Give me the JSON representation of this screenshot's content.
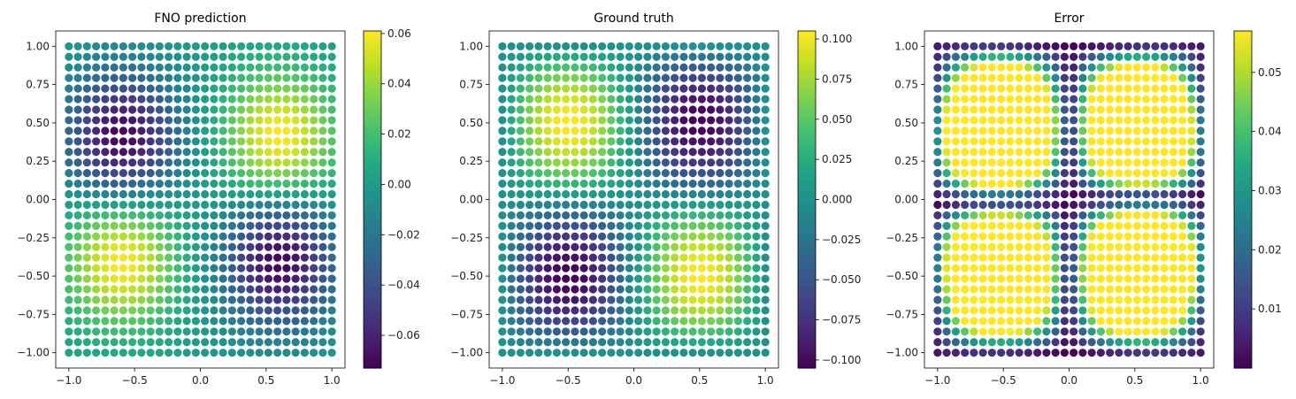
{
  "chart_data": [
    {
      "type": "scatter",
      "title": "FNO prediction",
      "xlabel": "",
      "ylabel": "",
      "xlim": [
        -1.1,
        1.1
      ],
      "ylim": [
        -1.1,
        1.1
      ],
      "grid_points_per_axis": 30,
      "x_range": [
        -1.0,
        1.0
      ],
      "y_range": [
        -1.0,
        1.0
      ],
      "field": "-sin(pi*x)*sin(pi*y)",
      "peak_positions": [
        [
          0.6,
          0.4
        ],
        [
          -0.6,
          -0.4
        ]
      ],
      "peak_value": 0.062,
      "trough_positions": [
        [
          -0.6,
          0.4
        ],
        [
          0.6,
          -0.4
        ]
      ],
      "trough_value": -0.073,
      "colormap": "viridis",
      "colorbar_range": [
        -0.073,
        0.061
      ],
      "xticks": [
        "−1.0",
        "−0.5",
        "0.0",
        "0.5",
        "1.0"
      ],
      "xtick_values": [
        -1.0,
        -0.5,
        0.0,
        0.5,
        1.0
      ],
      "yticks": [
        "−1.00",
        "−0.75",
        "−0.50",
        "−0.25",
        "0.00",
        "0.25",
        "0.50",
        "0.75",
        "1.00"
      ],
      "ytick_values": [
        -1.0,
        -0.75,
        -0.5,
        -0.25,
        0.0,
        0.25,
        0.5,
        0.75,
        1.0
      ],
      "colorbar_ticks": [
        "−0.06",
        "−0.04",
        "−0.02",
        "0.00",
        "0.02",
        "0.04",
        "0.06"
      ],
      "colorbar_tick_values": [
        -0.06,
        -0.04,
        -0.02,
        0.0,
        0.02,
        0.04,
        0.06
      ]
    },
    {
      "type": "scatter",
      "title": "Ground truth",
      "xlabel": "",
      "ylabel": "",
      "xlim": [
        -1.1,
        1.1
      ],
      "ylim": [
        -1.1,
        1.1
      ],
      "grid_points_per_axis": 30,
      "x_range": [
        -1.0,
        1.0
      ],
      "y_range": [
        -1.0,
        1.0
      ],
      "field": "-0.105*sin(pi*x)*sin(pi*y)",
      "peak_positions": [
        [
          0.5,
          0.5
        ],
        [
          -0.5,
          -0.5
        ]
      ],
      "peak_value": 0.105,
      "trough_positions": [
        [
          -0.5,
          0.5
        ],
        [
          0.5,
          -0.5
        ]
      ],
      "trough_value": -0.105,
      "colormap": "viridis",
      "colorbar_range": [
        -0.105,
        0.105
      ],
      "xticks": [
        "−1.0",
        "−0.5",
        "0.0",
        "0.5",
        "1.0"
      ],
      "xtick_values": [
        -1.0,
        -0.5,
        0.0,
        0.5,
        1.0
      ],
      "yticks": [
        "−1.00",
        "−0.75",
        "−0.50",
        "−0.25",
        "0.00",
        "0.25",
        "0.50",
        "0.75",
        "1.00"
      ],
      "ytick_values": [
        -1.0,
        -0.75,
        -0.5,
        -0.25,
        0.0,
        0.25,
        0.5,
        0.75,
        1.0
      ],
      "colorbar_ticks": [
        "−0.100",
        "−0.075",
        "−0.050",
        "−0.025",
        "0.000",
        "0.025",
        "0.050",
        "0.075",
        "0.100"
      ],
      "colorbar_tick_values": [
        -0.1,
        -0.075,
        -0.05,
        -0.025,
        0.0,
        0.025,
        0.05,
        0.075,
        0.1
      ]
    },
    {
      "type": "scatter",
      "title": "Error",
      "xlabel": "",
      "ylabel": "",
      "xlim": [
        -1.1,
        1.1
      ],
      "ylim": [
        -1.1,
        1.1
      ],
      "grid_points_per_axis": 30,
      "x_range": [
        -1.0,
        1.0
      ],
      "y_range": [
        -1.0,
        1.0
      ],
      "field": "abs(ground_truth - prediction)",
      "peak_positions": [
        [
          0.4,
          0.5
        ],
        [
          -0.4,
          -0.5
        ]
      ],
      "peak_value": 0.057,
      "colormap": "viridis",
      "colorbar_range": [
        0.0,
        0.057
      ],
      "xticks": [
        "−1.0",
        "−0.5",
        "0.0",
        "0.5",
        "1.0"
      ],
      "xtick_values": [
        -1.0,
        -0.5,
        0.0,
        0.5,
        1.0
      ],
      "yticks": [
        "−1.00",
        "−0.75",
        "−0.50",
        "−0.25",
        "0.00",
        "0.25",
        "0.50",
        "0.75",
        "1.00"
      ],
      "ytick_values": [
        -1.0,
        -0.75,
        -0.5,
        -0.25,
        0.0,
        0.25,
        0.5,
        0.75,
        1.0
      ],
      "colorbar_ticks": [
        "0.01",
        "0.02",
        "0.03",
        "0.04",
        "0.05"
      ],
      "colorbar_tick_values": [
        0.01,
        0.02,
        0.03,
        0.04,
        0.05
      ]
    }
  ]
}
